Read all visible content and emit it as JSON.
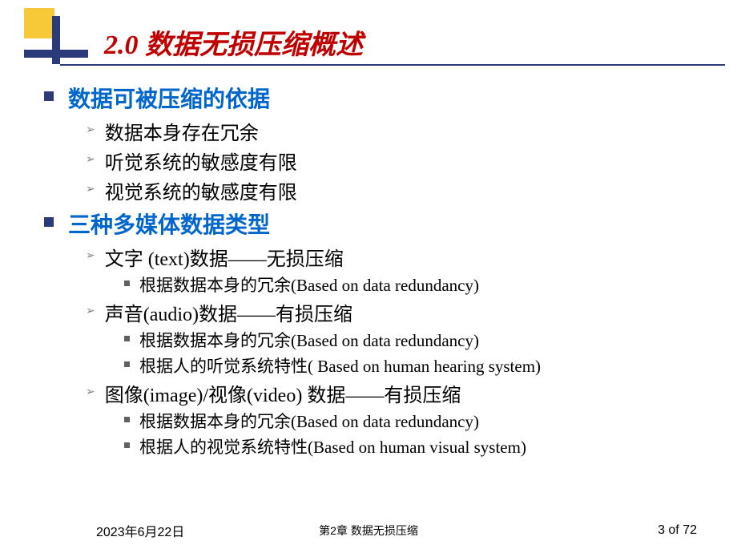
{
  "title": "2.0 数据无损压缩概述",
  "colors": {
    "title": "#c00000",
    "heading": "#0066cc",
    "body": "#000000",
    "accent_navy": "#2a3a7a",
    "accent_yellow": "#f7c838",
    "bullet_gray": "#808080"
  },
  "sections": [
    {
      "label": "数据可被压缩的依据",
      "items": [
        {
          "label": "数据本身存在冗余",
          "sub": []
        },
        {
          "label": "听觉系统的敏感度有限",
          "sub": []
        },
        {
          "label": "视觉系统的敏感度有限",
          "sub": []
        }
      ]
    },
    {
      "label": "三种多媒体数据类型",
      "items": [
        {
          "label": "文字 (text)数据——无损压缩",
          "sub": [
            "根据数据本身的冗余(Based on data redundancy)"
          ]
        },
        {
          "label": "声音(audio)数据——有损压缩",
          "sub": [
            "根据数据本身的冗余(Based on data redundancy)",
            "根据人的听觉系统特性( Based on human hearing system)"
          ]
        },
        {
          "label": "图像(image)/视像(video) 数据——有损压缩",
          "sub": [
            "根据数据本身的冗余(Based on data redundancy)",
            "根据人的视觉系统特性(Based on human visual system)"
          ]
        }
      ]
    }
  ],
  "footer": {
    "date": "2023年6月22日",
    "center": "第2章 数据无损压缩",
    "page": "3 of 72"
  }
}
